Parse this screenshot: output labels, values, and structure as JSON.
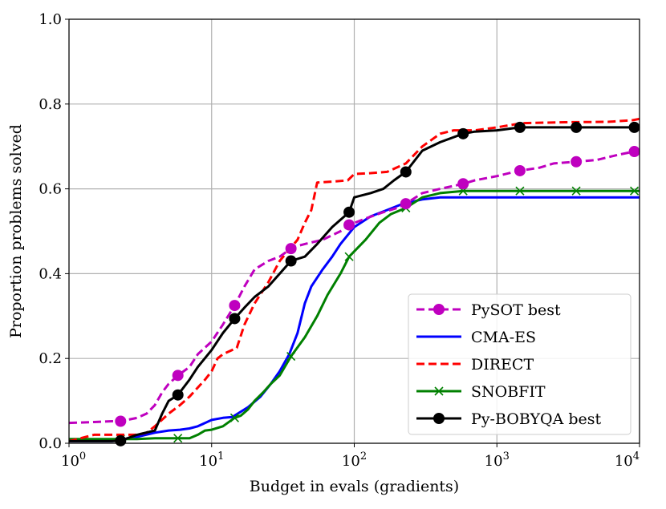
{
  "chart_data": {
    "type": "line",
    "xscale": "log",
    "xlabel": "Budget in evals (gradients)",
    "ylabel": "Proportion problems solved",
    "xlim": [
      1,
      10000
    ],
    "ylim": [
      0,
      1.0
    ],
    "grid": true,
    "legend_position": "lower-right",
    "x_ticks": [
      {
        "value": 1,
        "base": "10",
        "exp": "0"
      },
      {
        "value": 10,
        "base": "10",
        "exp": "1"
      },
      {
        "value": 100,
        "base": "10",
        "exp": "2"
      },
      {
        "value": 1000,
        "base": "10",
        "exp": "3"
      },
      {
        "value": 10000,
        "base": "10",
        "exp": "4"
      }
    ],
    "y_ticks": [
      {
        "value": 0.0,
        "label": "0.0"
      },
      {
        "value": 0.2,
        "label": "0.2"
      },
      {
        "value": 0.4,
        "label": "0.4"
      },
      {
        "value": 0.6,
        "label": "0.6"
      },
      {
        "value": 0.8,
        "label": "0.8"
      },
      {
        "value": 1.0,
        "label": "1.0"
      }
    ],
    "series": [
      {
        "name": "PySOT best",
        "color": "#bf00bf",
        "dash": "dashed",
        "marker": "circle",
        "x": [
          1,
          1.5,
          2,
          2.3,
          3,
          3.5,
          4,
          4.5,
          5,
          5.8,
          7,
          8,
          10,
          12,
          14.5,
          17,
          20,
          25,
          30,
          37,
          45,
          60,
          80,
          92,
          120,
          160,
          200,
          230,
          300,
          400,
          580,
          700,
          1000,
          1400,
          2000,
          2500,
          3600,
          5000,
          7000,
          9200,
          10000
        ],
        "y": [
          0.048,
          0.05,
          0.052,
          0.052,
          0.06,
          0.07,
          0.09,
          0.12,
          0.14,
          0.16,
          0.18,
          0.21,
          0.24,
          0.28,
          0.325,
          0.37,
          0.41,
          0.43,
          0.44,
          0.462,
          0.47,
          0.48,
          0.5,
          0.515,
          0.53,
          0.545,
          0.555,
          0.565,
          0.59,
          0.6,
          0.612,
          0.62,
          0.63,
          0.642,
          0.65,
          0.66,
          0.664,
          0.668,
          0.68,
          0.688,
          0.69
        ]
      },
      {
        "name": "CMA-ES",
        "color": "#0000ff",
        "dash": "solid",
        "marker": "none",
        "x": [
          1,
          2,
          3,
          4,
          5,
          6,
          7,
          8,
          10,
          12,
          14,
          18,
          22,
          26,
          30,
          35,
          40,
          45,
          50,
          60,
          70,
          80,
          100,
          130,
          170,
          220,
          300,
          400,
          600,
          1000,
          2000,
          10000
        ],
        "y": [
          0.005,
          0.005,
          0.015,
          0.025,
          0.03,
          0.032,
          0.035,
          0.04,
          0.055,
          0.06,
          0.062,
          0.085,
          0.11,
          0.14,
          0.17,
          0.21,
          0.26,
          0.33,
          0.37,
          0.41,
          0.44,
          0.47,
          0.51,
          0.535,
          0.55,
          0.565,
          0.575,
          0.58,
          0.58,
          0.58,
          0.58,
          0.58
        ]
      },
      {
        "name": "DIRECT",
        "color": "#ff0000",
        "dash": "dashed",
        "marker": "none",
        "x": [
          1,
          1.5,
          2,
          3,
          3.5,
          4,
          5,
          6,
          7,
          9,
          10,
          11,
          12,
          15,
          17,
          20,
          25,
          30,
          40,
          45,
          50,
          55,
          70,
          90,
          100,
          130,
          170,
          230,
          300,
          400,
          500,
          700,
          1000,
          1500,
          3000,
          6000,
          9000,
          10000
        ],
        "y": [
          0.005,
          0.02,
          0.02,
          0.02,
          0.025,
          0.04,
          0.07,
          0.09,
          0.11,
          0.15,
          0.17,
          0.2,
          0.21,
          0.225,
          0.28,
          0.33,
          0.38,
          0.43,
          0.48,
          0.52,
          0.55,
          0.615,
          0.617,
          0.62,
          0.635,
          0.637,
          0.64,
          0.66,
          0.7,
          0.73,
          0.738,
          0.738,
          0.745,
          0.755,
          0.757,
          0.758,
          0.762,
          0.765
        ]
      },
      {
        "name": "SNOBFIT",
        "color": "#008000",
        "dash": "solid",
        "marker": "x",
        "x": [
          1,
          2,
          3,
          4,
          5,
          5.8,
          7,
          8,
          9,
          10,
          12,
          14.5,
          16,
          18,
          20,
          23,
          26,
          30,
          36,
          45,
          55,
          65,
          80,
          92,
          120,
          150,
          180,
          230,
          300,
          400,
          580,
          1000,
          1450,
          2000,
          3600,
          5000,
          9200,
          10000
        ],
        "y": [
          0.01,
          0.01,
          0.01,
          0.012,
          0.012,
          0.012,
          0.012,
          0.02,
          0.03,
          0.032,
          0.04,
          0.06,
          0.065,
          0.08,
          0.1,
          0.12,
          0.14,
          0.16,
          0.205,
          0.25,
          0.3,
          0.35,
          0.4,
          0.44,
          0.48,
          0.52,
          0.54,
          0.555,
          0.58,
          0.59,
          0.595,
          0.595,
          0.595,
          0.595,
          0.595,
          0.595,
          0.595,
          0.595
        ]
      },
      {
        "name": "Py-BOBYQA best",
        "color": "#000000",
        "dash": "solid",
        "marker": "circle",
        "x": [
          1,
          2,
          2.3,
          3,
          4,
          4.5,
          5,
          5.8,
          7,
          8,
          10,
          12,
          14.5,
          17,
          20,
          25,
          30,
          36,
          45,
          55,
          70,
          92,
          100,
          130,
          160,
          190,
          230,
          300,
          400,
          580,
          700,
          1000,
          1450,
          2000,
          3600,
          5000,
          9200,
          10000
        ],
        "y": [
          0.005,
          0.005,
          0.006,
          0.02,
          0.03,
          0.07,
          0.1,
          0.114,
          0.15,
          0.18,
          0.22,
          0.26,
          0.294,
          0.32,
          0.345,
          0.37,
          0.4,
          0.43,
          0.44,
          0.47,
          0.51,
          0.545,
          0.58,
          0.59,
          0.6,
          0.62,
          0.64,
          0.69,
          0.71,
          0.73,
          0.735,
          0.738,
          0.745,
          0.745,
          0.745,
          0.745,
          0.745,
          0.745
        ]
      }
    ]
  }
}
